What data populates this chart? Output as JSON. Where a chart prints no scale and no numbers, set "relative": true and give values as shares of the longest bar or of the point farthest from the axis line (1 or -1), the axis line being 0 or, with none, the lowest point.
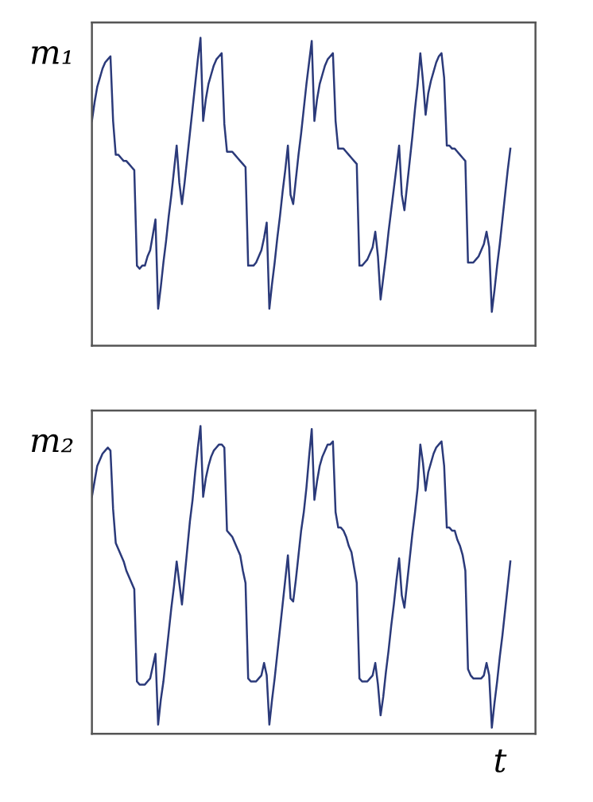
{
  "chart_data": [
    {
      "type": "line",
      "relative": true,
      "ylabel": "m₁",
      "tick_labels": false,
      "categories": [
        null,
        null,
        null,
        null,
        null,
        null,
        null,
        null,
        null,
        null,
        null,
        null,
        null,
        null,
        null,
        null,
        null,
        null,
        null,
        null,
        null,
        null,
        null,
        null,
        null,
        null,
        null,
        null,
        null,
        null,
        null,
        null,
        null,
        null,
        null,
        null,
        null,
        null,
        null,
        null,
        null,
        null,
        null,
        null,
        null,
        null,
        null,
        null,
        null,
        null,
        null,
        null,
        null,
        null,
        null,
        null,
        null,
        null,
        null,
        null,
        null,
        null,
        null,
        null,
        null,
        null,
        null,
        null,
        null,
        null,
        null,
        null,
        null,
        null,
        null,
        null,
        null,
        null,
        null,
        null,
        null,
        null,
        null,
        null,
        null,
        null,
        null,
        null,
        null,
        null,
        null,
        null,
        null,
        null,
        null,
        null,
        null,
        null,
        null,
        null,
        null,
        null,
        null,
        null,
        null,
        null,
        null,
        null,
        null,
        null,
        null,
        null,
        null,
        null,
        null,
        null,
        null,
        null,
        null,
        null,
        null,
        null,
        null,
        null,
        null,
        null,
        null,
        null,
        null,
        null,
        null,
        null,
        null,
        null,
        null,
        null,
        null,
        null,
        null,
        null,
        null,
        null,
        null,
        null,
        null,
        null,
        null,
        null,
        null,
        null,
        null,
        null,
        null,
        null,
        null,
        null,
        null,
        null,
        null
      ],
      "series": [
        {
          "color": "#2b3a7a",
          "values": [
            0.73,
            0.79,
            0.84,
            0.87,
            0.9,
            0.92,
            0.93,
            0.94,
            0.73,
            0.62,
            0.62,
            0.61,
            0.6,
            0.6,
            0.59,
            0.58,
            0.57,
            0.26,
            0.25,
            0.26,
            0.26,
            0.29,
            0.31,
            0.36,
            0.41,
            0.12,
            0.19,
            0.27,
            0.34,
            0.42,
            0.49,
            0.57,
            0.65,
            0.53,
            0.46,
            0.53,
            0.61,
            0.69,
            0.77,
            0.85,
            0.93,
            1.0,
            0.73,
            0.8,
            0.85,
            0.88,
            0.91,
            0.93,
            0.94,
            0.95,
            0.72,
            0.63,
            0.63,
            0.63,
            0.62,
            0.61,
            0.6,
            0.59,
            0.58,
            0.26,
            0.26,
            0.26,
            0.27,
            0.29,
            0.31,
            0.35,
            0.4,
            0.12,
            0.2,
            0.27,
            0.35,
            0.42,
            0.5,
            0.57,
            0.65,
            0.49,
            0.46,
            0.54,
            0.62,
            0.69,
            0.77,
            0.85,
            0.92,
            0.99,
            0.73,
            0.8,
            0.85,
            0.88,
            0.91,
            0.93,
            0.94,
            0.95,
            0.73,
            0.64,
            0.64,
            0.64,
            0.63,
            0.62,
            0.61,
            0.6,
            0.59,
            0.26,
            0.26,
            0.27,
            0.28,
            0.3,
            0.32,
            0.37,
            0.29,
            0.15,
            0.22,
            0.29,
            0.37,
            0.44,
            0.51,
            0.58,
            0.65,
            0.49,
            0.44,
            0.52,
            0.6,
            0.68,
            0.77,
            0.85,
            0.95,
            0.86,
            0.75,
            0.82,
            0.86,
            0.89,
            0.92,
            0.94,
            0.95,
            0.87,
            0.65,
            0.65,
            0.64,
            0.64,
            0.63,
            0.62,
            0.61,
            0.6,
            0.27,
            0.27,
            0.27,
            0.28,
            0.29,
            0.31,
            0.33,
            0.37,
            0.32,
            0.11,
            0.18,
            0.26,
            0.33,
            0.41,
            0.49,
            0.57,
            0.64
          ]
        }
      ]
    },
    {
      "type": "line",
      "relative": true,
      "ylabel": "m₂",
      "xlabel": "t",
      "tick_labels": false,
      "categories": [
        null,
        null,
        null,
        null,
        null,
        null,
        null,
        null,
        null,
        null,
        null,
        null,
        null,
        null,
        null,
        null,
        null,
        null,
        null,
        null,
        null,
        null,
        null,
        null,
        null,
        null,
        null,
        null,
        null,
        null,
        null,
        null,
        null,
        null,
        null,
        null,
        null,
        null,
        null,
        null,
        null,
        null,
        null,
        null,
        null,
        null,
        null,
        null,
        null,
        null,
        null,
        null,
        null,
        null,
        null,
        null,
        null,
        null,
        null,
        null,
        null,
        null,
        null,
        null,
        null,
        null,
        null,
        null,
        null,
        null,
        null,
        null,
        null,
        null,
        null,
        null,
        null,
        null,
        null,
        null,
        null,
        null,
        null,
        null,
        null,
        null,
        null,
        null,
        null,
        null,
        null,
        null,
        null,
        null,
        null,
        null,
        null,
        null,
        null,
        null,
        null,
        null,
        null,
        null,
        null,
        null,
        null,
        null,
        null,
        null,
        null,
        null,
        null,
        null,
        null,
        null,
        null,
        null,
        null,
        null,
        null,
        null,
        null,
        null,
        null,
        null,
        null,
        null,
        null,
        null,
        null,
        null,
        null,
        null,
        null,
        null,
        null,
        null,
        null,
        null,
        null,
        null,
        null,
        null,
        null,
        null,
        null,
        null,
        null,
        null,
        null,
        null,
        null,
        null,
        null,
        null,
        null,
        null,
        null
      ],
      "series": [
        {
          "color": "#2b3a7a",
          "values": [
            0.77,
            0.82,
            0.87,
            0.89,
            0.91,
            0.92,
            0.93,
            0.92,
            0.73,
            0.62,
            0.6,
            0.58,
            0.56,
            0.53,
            0.51,
            0.49,
            0.47,
            0.17,
            0.16,
            0.16,
            0.16,
            0.17,
            0.18,
            0.22,
            0.26,
            0.03,
            0.11,
            0.17,
            0.25,
            0.33,
            0.41,
            0.48,
            0.56,
            0.49,
            0.42,
            0.51,
            0.6,
            0.69,
            0.76,
            0.85,
            0.93,
            1.0,
            0.77,
            0.83,
            0.87,
            0.9,
            0.92,
            0.93,
            0.94,
            0.94,
            0.93,
            0.66,
            0.65,
            0.64,
            0.62,
            0.6,
            0.58,
            0.53,
            0.49,
            0.18,
            0.17,
            0.17,
            0.17,
            0.18,
            0.19,
            0.23,
            0.19,
            0.03,
            0.11,
            0.18,
            0.26,
            0.34,
            0.42,
            0.5,
            0.58,
            0.44,
            0.43,
            0.5,
            0.58,
            0.66,
            0.72,
            0.8,
            0.9,
            0.99,
            0.76,
            0.82,
            0.87,
            0.9,
            0.92,
            0.94,
            0.94,
            0.95,
            0.72,
            0.67,
            0.67,
            0.66,
            0.64,
            0.61,
            0.59,
            0.54,
            0.49,
            0.18,
            0.17,
            0.17,
            0.17,
            0.18,
            0.19,
            0.23,
            0.16,
            0.06,
            0.12,
            0.2,
            0.27,
            0.35,
            0.42,
            0.5,
            0.57,
            0.45,
            0.41,
            0.49,
            0.57,
            0.65,
            0.72,
            0.8,
            0.94,
            0.88,
            0.79,
            0.85,
            0.88,
            0.91,
            0.93,
            0.94,
            0.95,
            0.87,
            0.67,
            0.67,
            0.66,
            0.66,
            0.63,
            0.61,
            0.58,
            0.53,
            0.21,
            0.19,
            0.18,
            0.18,
            0.18,
            0.18,
            0.19,
            0.23,
            0.19,
            0.02,
            0.1,
            0.17,
            0.25,
            0.32,
            0.4,
            0.48,
            0.56
          ]
        }
      ]
    }
  ]
}
